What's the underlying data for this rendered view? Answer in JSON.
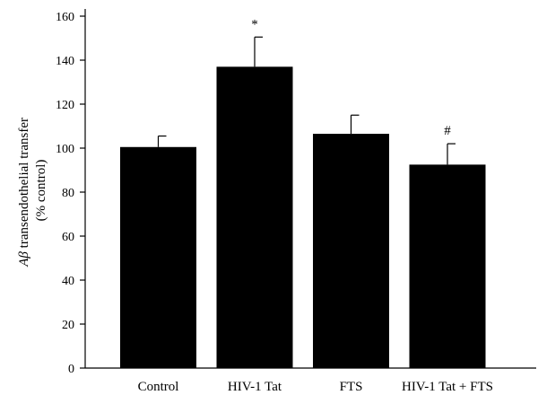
{
  "chart_data": {
    "type": "bar",
    "categories": [
      "Control",
      "HIV-1 Tat",
      "FTS",
      "HIV-1 Tat + FTS"
    ],
    "values": [
      100.5,
      137,
      106.5,
      92.5
    ],
    "error_upper": [
      105.5,
      150.5,
      115,
      102
    ],
    "annotations": [
      "",
      "*",
      "",
      "#"
    ],
    "ylabel_line1_prefix": "A",
    "ylabel_line1_greek": "β",
    "ylabel_line1_suffix": " transendothelial transfer",
    "ylabel_line2": "(% control)",
    "ylim": [
      0,
      160
    ],
    "yticks": [
      0,
      20,
      40,
      60,
      80,
      100,
      120,
      140,
      160
    ],
    "bar_color": "#000000",
    "grid": false
  }
}
